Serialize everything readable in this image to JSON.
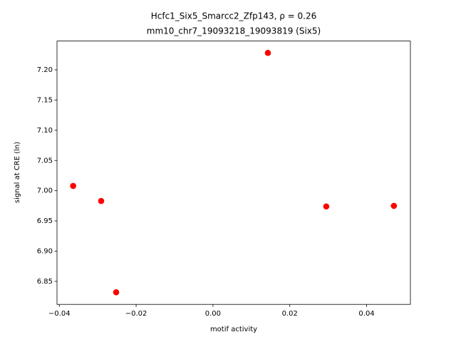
{
  "chart_data": {
    "type": "scatter",
    "title": "Hcfc1_Six5_Smarcc2_Zfp143, ρ = 0.26",
    "subtitle": "mm10_chr7_19093218_19093819 (Six5)",
    "x_label": "motif activity",
    "y_label": "signal at CRE (ln)",
    "color": "#ff0000",
    "x": [
      -0.0364,
      -0.0291,
      -0.0252,
      0.0143,
      0.0295,
      0.0471
    ],
    "values": [
      7.008,
      6.983,
      6.832,
      7.228,
      6.974,
      6.975
    ],
    "xlim": [
      -0.0406,
      0.0514
    ],
    "ylim": [
      6.812,
      7.2476
    ],
    "xticks": [
      {
        "value": -0.04,
        "label": "−0.04"
      },
      {
        "value": -0.02,
        "label": "−0.02"
      },
      {
        "value": 0,
        "label": "0.00"
      },
      0.02,
      0.04
    ],
    "yticks": [
      6.85,
      {
        "value": 6.9,
        "label": "6.90"
      },
      6.95,
      {
        "value": 7,
        "label": "7.00"
      },
      7.05,
      {
        "value": 7.1,
        "label": "7.10"
      },
      7.15,
      {
        "value": 7.2,
        "label": "7.20"
      }
    ],
    "grid": false
  }
}
